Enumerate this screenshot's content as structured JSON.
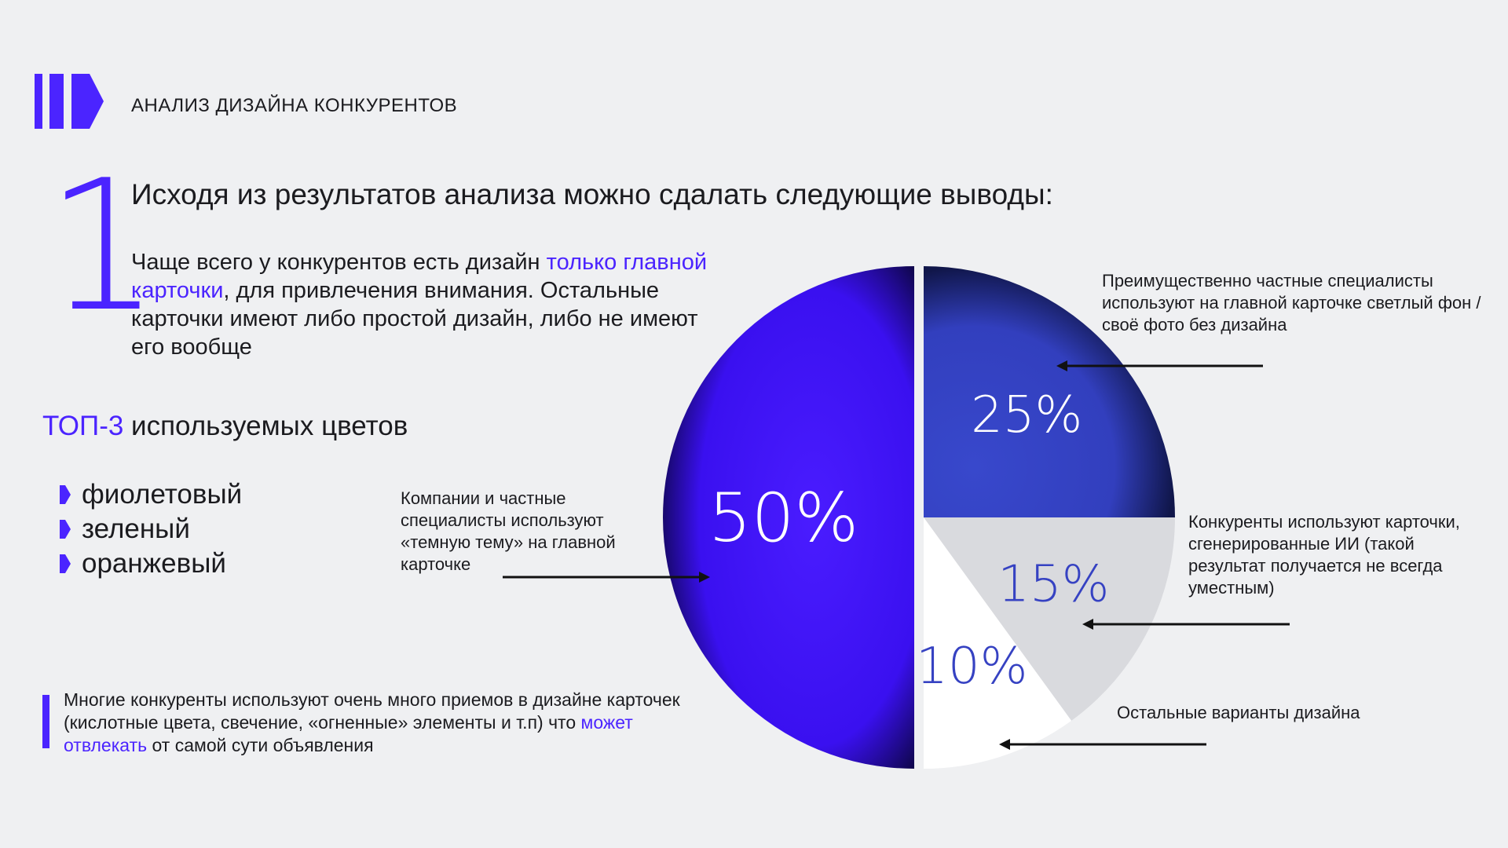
{
  "header": {
    "title": "АНАЛИЗ ДИЗАЙНА КОНКУРЕНТОВ"
  },
  "section": {
    "number": "1",
    "headline": "Исходя из результатов анализа можно сдалать следующие выводы:"
  },
  "intro": {
    "part1": "Чаще всего у конкурентов есть дизайн ",
    "highlight": "только главной карточки",
    "part2": ", для привлечения внимания. Остальные карточки имеют либо простой дизайн, либо не имеют его вообще"
  },
  "top_colors": {
    "title_accent": "ТОП-3",
    "title_rest": " используемых цветов",
    "items": [
      "фиолетовый",
      "зеленый",
      "оранжевый"
    ]
  },
  "note": {
    "part1": "Многие конкуренты используют очень много приемов в дизайне карточек (кислотные цвета, свечение, «огненные» элементы и т.п) что ",
    "highlight": "может отвлекать",
    "part2": " от самой сути объявления"
  },
  "colors": {
    "accent": "#4b24ff",
    "slice_50": "#3d14f5",
    "slice_25": "#3642c2",
    "slice_15": "#d9dade",
    "slice_10": "#ffffff"
  },
  "chart_data": {
    "type": "pie",
    "slices": [
      {
        "value": 50,
        "label": "50%",
        "callout": "Компании и частные специалисты используют «темную тему» на главной карточке"
      },
      {
        "value": 25,
        "label": "25%",
        "callout": "Преимущественно частные специалисты используют на главной карточке светлый фон / своё фото без дизайна"
      },
      {
        "value": 15,
        "label": "15%",
        "callout": "Конкуренты используют карточки, сгенерированные ИИ (такой результат получается не всегда уместным)"
      },
      {
        "value": 10,
        "label": "10%",
        "callout": "Остальные варианты дизайна"
      }
    ]
  }
}
